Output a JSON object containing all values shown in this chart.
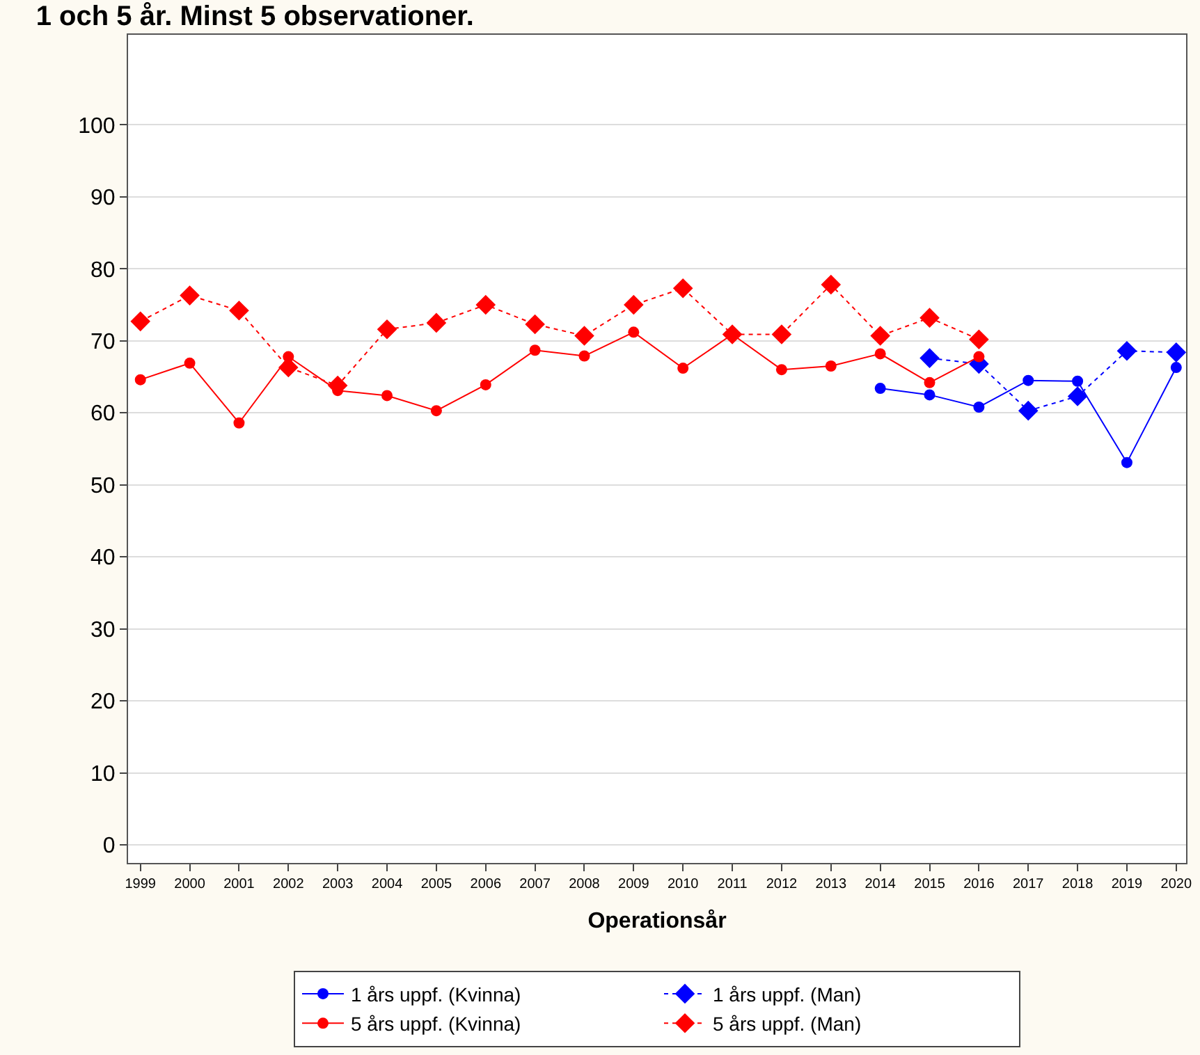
{
  "chart_data": {
    "type": "line",
    "title": "1 och 5 år. Minst 5 observationer.",
    "xlabel": "Operationsår",
    "categories": [
      "1999",
      "2000",
      "2001",
      "2002",
      "2003",
      "2004",
      "2005",
      "2006",
      "2007",
      "2008",
      "2009",
      "2010",
      "2011",
      "2012",
      "2013",
      "2014",
      "2015",
      "2016",
      "2017",
      "2018",
      "2019",
      "2020"
    ],
    "ylim": [
      -2.5,
      112.5
    ],
    "yticks": [
      0,
      10,
      20,
      30,
      40,
      50,
      60,
      70,
      80,
      90,
      100
    ],
    "grid": "y",
    "legend": "bottom",
    "series": [
      {
        "name": "1 års uppf. (Kvinna)",
        "color": "#0000ff",
        "marker": "circle",
        "line_style": "solid",
        "values": [
          null,
          null,
          null,
          null,
          null,
          null,
          null,
          null,
          null,
          null,
          null,
          null,
          null,
          null,
          null,
          63.4,
          62.5,
          60.8,
          64.5,
          64.4,
          53.1,
          66.3
        ]
      },
      {
        "name": "1 års uppf. (Man)",
        "color": "#0000ff",
        "marker": "diamond",
        "line_style": "dotted",
        "values": [
          null,
          null,
          null,
          null,
          null,
          null,
          null,
          null,
          null,
          null,
          null,
          null,
          null,
          null,
          null,
          null,
          67.6,
          66.8,
          60.3,
          62.3,
          68.6,
          68.4
        ]
      },
      {
        "name": "5 års uppf. (Kvinna)",
        "color": "#ff0000",
        "marker": "circle",
        "line_style": "solid",
        "values": [
          64.6,
          66.9,
          58.6,
          67.8,
          63.1,
          62.4,
          60.3,
          63.9,
          68.7,
          67.9,
          71.2,
          66.2,
          70.9,
          66.0,
          66.5,
          68.2,
          64.2,
          67.8,
          null,
          null,
          null,
          null
        ]
      },
      {
        "name": "5 års uppf. (Man)",
        "color": "#ff0000",
        "marker": "diamond",
        "line_style": "dotted",
        "values": [
          72.7,
          76.3,
          74.2,
          66.3,
          63.8,
          71.6,
          72.5,
          75.0,
          72.3,
          70.7,
          75.0,
          77.3,
          70.9,
          70.9,
          77.8,
          70.7,
          73.2,
          70.2,
          null,
          null,
          null,
          null
        ]
      }
    ]
  }
}
